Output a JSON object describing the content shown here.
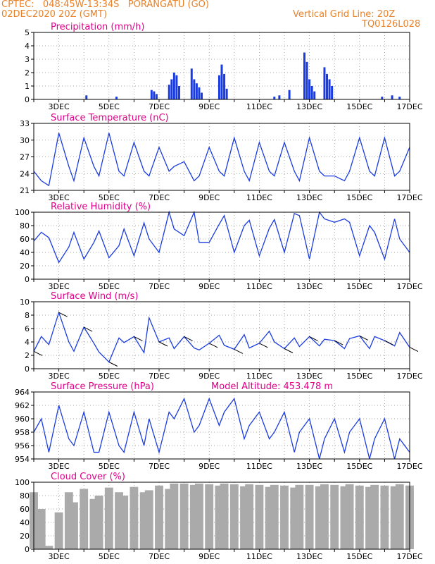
{
  "header": {
    "line1": "CPTEC:   048:45W-13:34S   PORANGATU (GO)",
    "line2": "02DEC2020 20Z (GMT)",
    "grid_note": "Vertical Grid Line: 20Z",
    "run_id": "TQ0126L028"
  },
  "colors": {
    "header": "#e8822a",
    "title": "#e0008a",
    "line": "#1a3be0",
    "bars": "#1a3be0",
    "cloud": "#aaaaaa"
  },
  "x_axis": {
    "labels": [
      "3DEC",
      "5DEC",
      "7DEC",
      "9DEC",
      "11DEC",
      "13DEC",
      "15DEC",
      "17DEC"
    ]
  },
  "chart_data": [
    {
      "type": "bar",
      "title": "Precipitation (mm/h)",
      "ylim": [
        0,
        5
      ],
      "yticks": [
        "0",
        "1",
        "2",
        "3",
        "4",
        "5"
      ],
      "x_days": [
        4.1,
        5.3,
        6.7,
        6.8,
        6.9,
        7.4,
        7.5,
        7.6,
        7.7,
        7.8,
        8.3,
        8.4,
        8.5,
        8.6,
        8.7,
        9.4,
        9.5,
        9.6,
        9.7,
        11.6,
        11.8,
        12.2,
        12.8,
        12.9,
        13.0,
        13.1,
        13.2,
        13.6,
        13.7,
        13.8,
        13.9,
        15.9,
        16.3,
        16.6
      ],
      "values": [
        0.3,
        0.2,
        0.7,
        0.6,
        0.4,
        1.1,
        1.5,
        2.0,
        1.8,
        1.0,
        2.3,
        1.5,
        1.2,
        0.9,
        0.5,
        1.8,
        2.6,
        1.9,
        0.8,
        0.2,
        0.3,
        0.7,
        3.5,
        2.8,
        1.5,
        1.0,
        0.6,
        2.4,
        1.9,
        1.5,
        1.0,
        0.2,
        0.3,
        0.2
      ]
    },
    {
      "type": "line",
      "title": "Surface Temperature (nC)",
      "ylim": [
        21,
        35
      ],
      "yticks": [
        "21",
        "24",
        "27",
        "30",
        "33"
      ],
      "x_days": [
        2.0,
        2.3,
        2.6,
        3.0,
        3.4,
        3.6,
        4.0,
        4.4,
        4.6,
        5.0,
        5.4,
        5.6,
        6.0,
        6.4,
        6.6,
        7.0,
        7.4,
        7.6,
        8.0,
        8.4,
        8.6,
        9.0,
        9.4,
        9.6,
        10.0,
        10.4,
        10.6,
        11.0,
        11.4,
        11.6,
        12.0,
        12.4,
        12.6,
        13.0,
        13.4,
        13.6,
        14.0,
        14.4,
        14.6,
        15.0,
        15.4,
        15.6,
        16.0,
        16.4,
        16.6,
        17.0
      ],
      "values": [
        25,
        23,
        22,
        33,
        26,
        23,
        32,
        26,
        24,
        33,
        25,
        24,
        31,
        25,
        24,
        30,
        25,
        26,
        27,
        23,
        24,
        30,
        25,
        24,
        32,
        25,
        23,
        31,
        25,
        24,
        31,
        25,
        23,
        32,
        25,
        24,
        24,
        23,
        25,
        32,
        25,
        24,
        32,
        24,
        25,
        30
      ]
    },
    {
      "type": "line",
      "title": "Relative Humidity (%)",
      "ylim": [
        0,
        100
      ],
      "yticks": [
        "0",
        "20",
        "40",
        "60",
        "80",
        "100"
      ],
      "x_days": [
        2.0,
        2.3,
        2.6,
        3.0,
        3.4,
        3.6,
        4.0,
        4.4,
        4.6,
        5.0,
        5.4,
        5.6,
        6.0,
        6.4,
        6.6,
        7.0,
        7.4,
        7.6,
        8.0,
        8.4,
        8.6,
        9.0,
        9.4,
        9.6,
        10.0,
        10.4,
        10.6,
        11.0,
        11.4,
        11.6,
        12.0,
        12.4,
        12.6,
        13.0,
        13.4,
        13.6,
        14.0,
        14.4,
        14.6,
        15.0,
        15.4,
        15.6,
        16.0,
        16.4,
        16.6,
        17.0
      ],
      "values": [
        57,
        70,
        62,
        25,
        48,
        70,
        30,
        55,
        72,
        32,
        50,
        75,
        35,
        84,
        60,
        40,
        100,
        75,
        65,
        100,
        55,
        55,
        82,
        95,
        40,
        80,
        88,
        35,
        76,
        89,
        40,
        98,
        95,
        30,
        100,
        90,
        85,
        90,
        85,
        35,
        80,
        70,
        30,
        90,
        60,
        40
      ]
    },
    {
      "type": "line",
      "title": "Surface Wind (m/s)",
      "ylim": [
        0,
        10
      ],
      "yticks": [
        "0",
        "2",
        "4",
        "6",
        "8",
        "10"
      ],
      "x_days": [
        2.0,
        2.3,
        2.6,
        3.0,
        3.4,
        3.6,
        4.0,
        4.4,
        4.6,
        5.0,
        5.4,
        5.6,
        6.0,
        6.4,
        6.6,
        7.0,
        7.4,
        7.6,
        8.0,
        8.4,
        8.6,
        9.0,
        9.4,
        9.6,
        10.0,
        10.4,
        10.6,
        11.0,
        11.4,
        11.6,
        12.0,
        12.4,
        12.6,
        13.0,
        13.4,
        13.6,
        14.0,
        14.4,
        14.6,
        15.0,
        15.4,
        15.6,
        16.0,
        16.4,
        16.6,
        17.0
      ],
      "values": [
        2.6,
        4.8,
        3.6,
        8.4,
        4.0,
        2.6,
        6.2,
        3.8,
        2.5,
        1.0,
        4.6,
        3.9,
        4.8,
        2.4,
        7.6,
        4.0,
        4.6,
        3.0,
        4.8,
        3.1,
        2.8,
        3.8,
        5.0,
        3.5,
        2.9,
        5.1,
        3.1,
        3.8,
        5.6,
        4.0,
        3.0,
        4.6,
        3.3,
        4.8,
        3.4,
        4.4,
        4.2,
        3.0,
        4.5,
        4.9,
        3.0,
        4.8,
        4.2,
        3.4,
        5.4,
        3.2
      ]
    },
    {
      "type": "line",
      "title": "Surface Pressure (hPa)",
      "annotation": "Model Altitude: 453.478 m",
      "ylim": [
        954,
        964
      ],
      "yticks": [
        "954",
        "956",
        "958",
        "960",
        "962",
        "964"
      ],
      "x_days": [
        2.0,
        2.3,
        2.6,
        3.0,
        3.4,
        3.6,
        4.0,
        4.4,
        4.6,
        5.0,
        5.4,
        5.6,
        6.0,
        6.4,
        6.6,
        7.0,
        7.4,
        7.6,
        8.0,
        8.4,
        8.6,
        9.0,
        9.4,
        9.6,
        10.0,
        10.4,
        10.6,
        11.0,
        11.4,
        11.6,
        12.0,
        12.4,
        12.6,
        13.0,
        13.4,
        13.6,
        14.0,
        14.4,
        14.6,
        15.0,
        15.4,
        15.6,
        16.0,
        16.4,
        16.6,
        17.0
      ],
      "values": [
        958,
        960,
        955,
        962,
        957,
        956,
        961,
        955,
        955,
        961,
        956,
        955,
        961,
        956,
        960,
        955,
        961,
        960,
        963,
        958,
        959,
        963,
        959,
        961,
        963,
        957,
        959,
        961,
        957,
        958,
        961,
        955,
        958,
        960,
        954,
        957,
        960,
        955,
        958,
        960,
        954,
        957,
        960,
        954,
        957,
        955
      ]
    },
    {
      "type": "bar",
      "title": "Cloud Cover (%)",
      "ylim": [
        0,
        100
      ],
      "yticks": [
        "0",
        "20",
        "40",
        "60",
        "80",
        "100"
      ],
      "x_days": [
        2.0,
        2.3,
        2.6,
        3.0,
        3.4,
        3.6,
        4.0,
        4.4,
        4.6,
        5.0,
        5.4,
        5.6,
        6.0,
        6.4,
        6.6,
        7.0,
        7.4,
        7.6,
        8.0,
        8.4,
        8.6,
        9.0,
        9.4,
        9.6,
        10.0,
        10.4,
        10.6,
        11.0,
        11.4,
        11.6,
        12.0,
        12.4,
        12.6,
        13.0,
        13.4,
        13.6,
        14.0,
        14.4,
        14.6,
        15.0,
        15.4,
        15.6,
        16.0,
        16.4,
        16.6,
        17.0
      ],
      "values": [
        85,
        60,
        5,
        55,
        85,
        70,
        90,
        75,
        80,
        92,
        85,
        80,
        93,
        85,
        88,
        95,
        90,
        98,
        98,
        96,
        98,
        97,
        95,
        98,
        97,
        94,
        97,
        96,
        93,
        96,
        95,
        92,
        96,
        96,
        94,
        97,
        96,
        94,
        97,
        95,
        93,
        96,
        95,
        94,
        97,
        95
      ]
    }
  ]
}
